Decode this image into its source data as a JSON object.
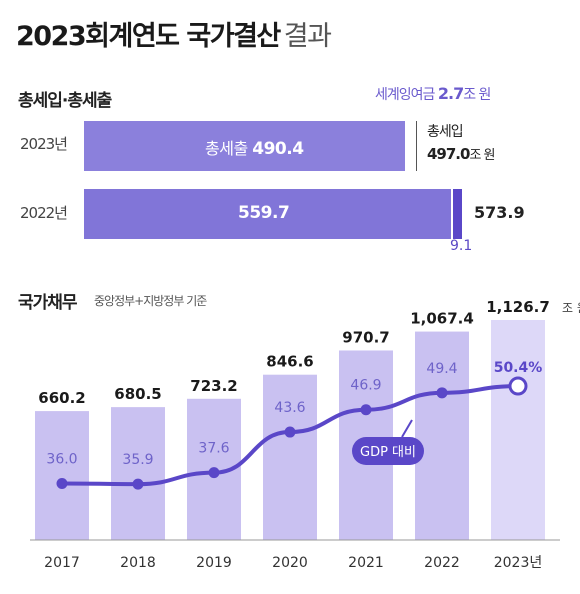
{
  "title": {
    "main": "2023회계연도 국가결산",
    "light": "결과"
  },
  "revenue_section": {
    "label": "총세입·총세출",
    "surplus_label": "세계잉여금",
    "surplus_value": "2.7",
    "surplus_unit": "조 원",
    "rows": [
      {
        "year": "2023년",
        "bar_label": "총세출",
        "expenditure": "490.4",
        "revenue_label": "총세입",
        "revenue": "497.0",
        "revenue_unit": "조 원"
      },
      {
        "year": "2022년",
        "expenditure": "559.7",
        "revenue": "573.9",
        "diff": "9.1"
      }
    ]
  },
  "debt_section": {
    "label": "국가채무",
    "sublabel": "중앙정부+지방정부 기준",
    "gdp_tag": "GDP 대비",
    "unit": "조 원"
  },
  "colors": {
    "bar": "#c9c1f1",
    "bar_highlight": "#ddd8f8",
    "line": "#5a47c8",
    "rev_bar": "#8b80dc",
    "label_purple": "#6a5acd"
  },
  "chart_data": [
    {
      "type": "bar",
      "title": "총세입·총세출",
      "categories": [
        "2023년",
        "2022년"
      ],
      "series": [
        {
          "name": "총세출",
          "values": [
            490.4,
            559.7
          ]
        },
        {
          "name": "총세입",
          "values": [
            497.0,
            573.9
          ]
        }
      ],
      "annotations": [
        "세계잉여금 2.7조 원",
        "9.1"
      ]
    },
    {
      "type": "bar",
      "title": "국가채무",
      "categories": [
        "2017",
        "2018",
        "2019",
        "2020",
        "2021",
        "2022",
        "2023년"
      ],
      "series": [
        {
          "name": "국가채무",
          "values": [
            660.2,
            680.5,
            723.2,
            846.6,
            970.7,
            1067.4,
            1126.7
          ],
          "labels": [
            "660.2",
            "680.5",
            "723.2",
            "846.6",
            "970.7",
            "1,067.4",
            "1,126.7"
          ]
        },
        {
          "name": "GDP 대비",
          "values": [
            36.0,
            35.9,
            37.6,
            43.6,
            46.9,
            49.4,
            50.4
          ],
          "labels": [
            "36.0",
            "35.9",
            "37.6",
            "43.6",
            "46.9",
            "49.4",
            "50.4%"
          ]
        }
      ],
      "ylim": [
        0,
        1200
      ]
    }
  ]
}
